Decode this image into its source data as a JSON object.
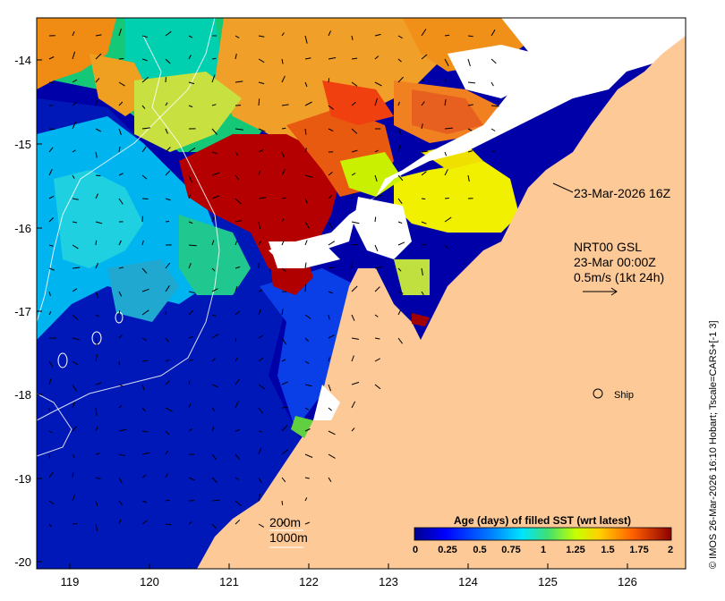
{
  "map": {
    "lon_ticks": [
      "119",
      "120",
      "121",
      "122",
      "123",
      "124",
      "125",
      "126"
    ],
    "lat_ticks": [
      "-14",
      "-15",
      "-16",
      "-17",
      "-18",
      "-19",
      "-20"
    ],
    "lon_range": [
      118.6,
      126.75
    ],
    "lat_range": [
      -20.1,
      -13.45
    ],
    "land_color": "#fdc997",
    "nodata_color": "#ffffff"
  },
  "annotations": {
    "timestamp": "23-Mar-2026 16Z",
    "current_model": "NRT00 GSL",
    "current_time": "23-Mar 00:00Z",
    "vector_scale": "0.5m/s (1kt 24h)",
    "ship_label": "Ship",
    "isobath_1": "200m",
    "isobath_2": "1000m",
    "credit": "© IMOS 26-Mar-2026 16:10 Hobart; Tscale=CARS+[-1 3]"
  },
  "colorbar": {
    "title": "Age (days) of filled SST (wrt latest)",
    "ticks": [
      "0",
      "0.25",
      "0.5",
      "0.75",
      "1",
      "1.25",
      "1.5",
      "1.75",
      "2"
    ],
    "range": [
      0,
      2
    ],
    "colors": [
      "#00008f",
      "#0000ff",
      "#0080ff",
      "#00ffff",
      "#80ff80",
      "#ffff00",
      "#ff8000",
      "#ff0000",
      "#800000"
    ]
  }
}
